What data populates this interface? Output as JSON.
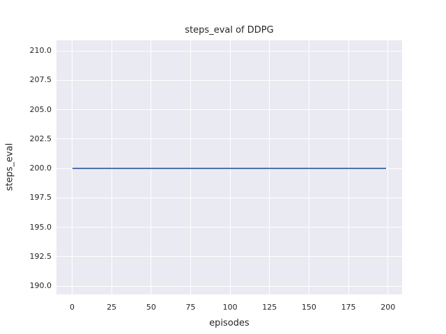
{
  "chart_data": {
    "type": "line",
    "title": "steps_eval of DDPG",
    "xlabel": "episodes",
    "ylabel": "steps_eval",
    "xlim": [
      -9.95,
      208.95
    ],
    "ylim": [
      189.3,
      210.9
    ],
    "xticks": [
      0,
      25,
      50,
      75,
      100,
      125,
      150,
      175,
      200
    ],
    "xtick_labels": [
      "0",
      "25",
      "50",
      "75",
      "100",
      "125",
      "150",
      "175",
      "200"
    ],
    "yticks": [
      190.0,
      192.5,
      195.0,
      197.5,
      200.0,
      202.5,
      205.0,
      207.5,
      210.0
    ],
    "ytick_labels": [
      "190.0",
      "192.5",
      "195.0",
      "197.5",
      "200.0",
      "202.5",
      "205.0",
      "207.5",
      "210.0"
    ],
    "grid": true,
    "legend": null,
    "series": [
      {
        "name": "steps_eval",
        "color": "#4c72b0",
        "x_start": 0,
        "x_end": 199,
        "y_constant": 200,
        "note": "constant value: steps_eval = 200 for every episode from 0 to 199"
      }
    ],
    "style": {
      "figure_background": "#ffffff",
      "plot_background": "#eaeaf2",
      "gridline_color": "#ffffff",
      "text_color": "#262626"
    }
  }
}
